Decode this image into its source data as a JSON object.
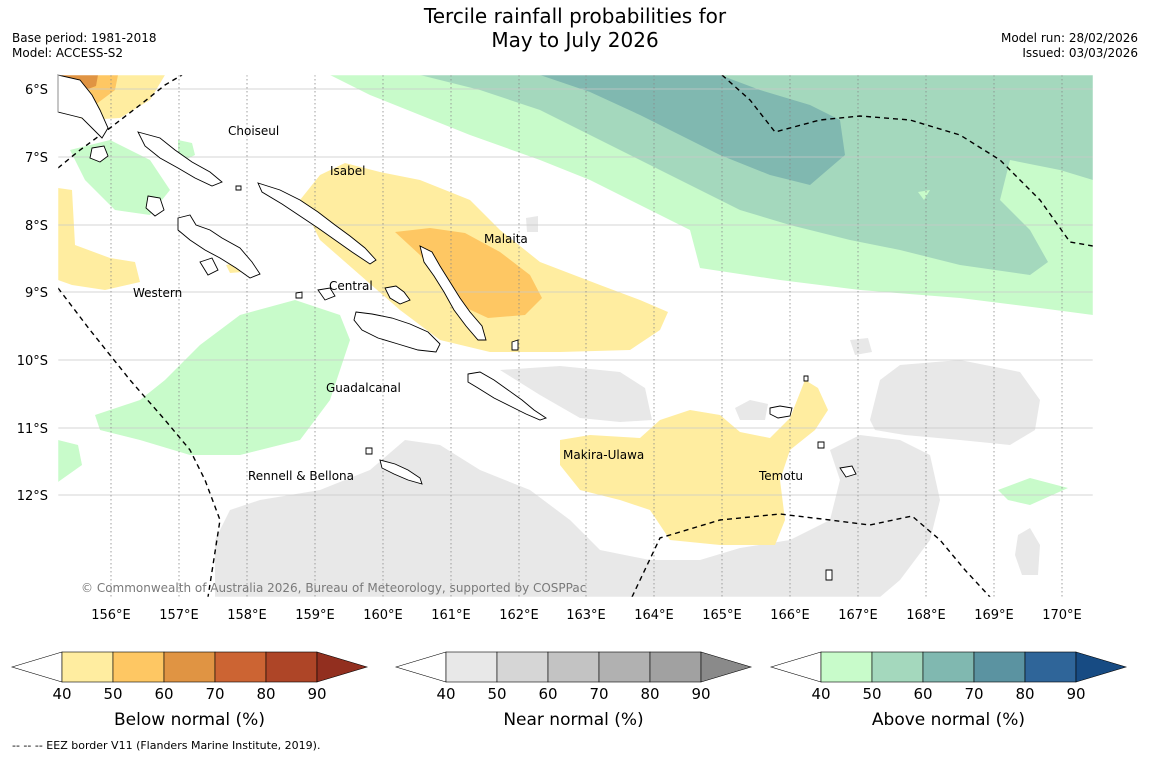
{
  "header": {
    "title_line1": "Tercile rainfall probabilities for",
    "title_line2": "May to July 2026",
    "base_period": "Base period: 1981-2018",
    "model": "Model: ACCESS-S2",
    "model_run": "Model run: 28/02/2026",
    "issued": "Issued: 03/03/2026"
  },
  "map": {
    "lat_labels": [
      "6°S",
      "7°S",
      "8°S",
      "9°S",
      "10°S",
      "11°S",
      "12°S"
    ],
    "lon_labels": [
      "156°E",
      "157°E",
      "158°E",
      "159°E",
      "160°E",
      "161°E",
      "162°E",
      "163°E",
      "164°E",
      "165°E",
      "166°E",
      "167°E",
      "168°E",
      "169°E",
      "170°E"
    ],
    "provinces": [
      "Choiseul",
      "Isabel",
      "Malaita",
      "Western",
      "Central",
      "Guadalcanal",
      "Makira-Ulawa",
      "Rennell & Bellona",
      "Temotu"
    ],
    "copyright": "© Commonwealth of Australia 2026, Bureau of Meteorology, supported by COSPPac"
  },
  "colorbars": [
    {
      "label": "Below normal (%)",
      "ticks": [
        "40",
        "50",
        "60",
        "70",
        "80",
        "90"
      ],
      "colors": [
        "#ffffff",
        "#ffeda0",
        "#fec763",
        "#e09443",
        "#cc6433",
        "#ae4527",
        "#922f1f"
      ]
    },
    {
      "label": "Near normal (%)",
      "ticks": [
        "40",
        "50",
        "60",
        "70",
        "80",
        "90"
      ],
      "colors": [
        "#ffffff",
        "#e8e8e8",
        "#d6d6d6",
        "#c3c3c3",
        "#b1b1b1",
        "#a1a1a1",
        "#8a8a8a"
      ]
    },
    {
      "label": "Above normal (%)",
      "ticks": [
        "40",
        "50",
        "60",
        "70",
        "80",
        "90"
      ],
      "colors": [
        "#ffffff",
        "#c8fbca",
        "#a4d8bd",
        "#80b8b0",
        "#5b93a1",
        "#2f6599",
        "#174b83"
      ]
    }
  ],
  "footer": "--  --  -- EEZ border V11 (Flanders Marine Institute, 2019)."
}
